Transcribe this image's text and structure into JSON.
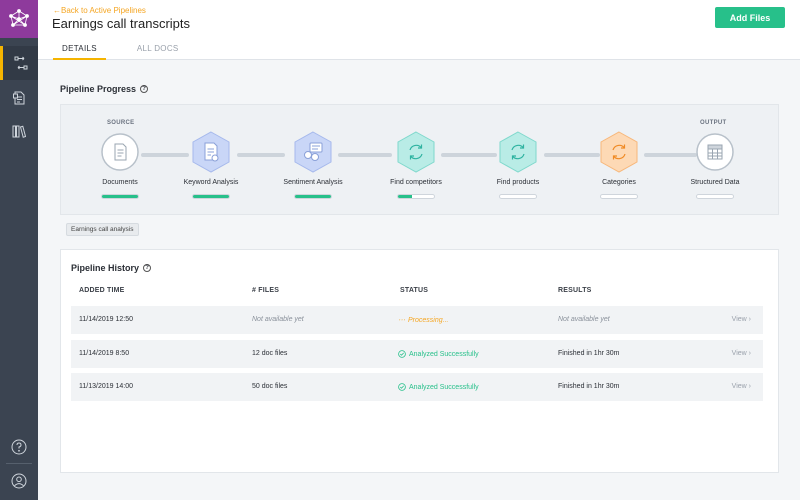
{
  "header": {
    "back_link": "←Back to Active Pipelines",
    "title": "Earnings call transcripts",
    "add_button": "Add Files"
  },
  "tabs": [
    {
      "label": "DETAILS",
      "active": true
    },
    {
      "label": "ALL DOCS",
      "active": false
    }
  ],
  "sidebar": {
    "logo_icon": "network-logo-icon",
    "items": [
      {
        "icon": "pipeline-icon",
        "active": true
      },
      {
        "icon": "document-icon",
        "active": false
      },
      {
        "icon": "library-icon",
        "active": false
      }
    ],
    "bottom": [
      {
        "icon": "help-icon"
      },
      {
        "icon": "user-icon"
      }
    ],
    "colors": {
      "bg": "#3b4451",
      "logo_bg": "#8e3a9c",
      "accent": "#f5b400"
    }
  },
  "progress": {
    "title": "Pipeline Progress",
    "source_label": "SOURCE",
    "output_label": "OUTPUT",
    "stages": [
      {
        "label": "Documents",
        "icon": "document-icon",
        "shape": "circle",
        "color": "#ffffff",
        "progress": 1.0
      },
      {
        "label": "Keyword Analysis",
        "icon": "edit-document-icon",
        "shape": "hexagon",
        "color": "#c9d6f7",
        "progress": 1.0
      },
      {
        "label": "Sentiment Analysis",
        "icon": "chat-bubbles-icon",
        "shape": "hexagon",
        "color": "#c9d6f7",
        "progress": 1.0
      },
      {
        "label": "Find competitors",
        "icon": "refresh-icon",
        "shape": "hexagon",
        "color": "#b9ece6",
        "progress": 0.4
      },
      {
        "label": "Find products",
        "icon": "refresh-icon",
        "shape": "hexagon",
        "color": "#b9ece6",
        "progress": 0.0
      },
      {
        "label": "Categories",
        "icon": "refresh-icon",
        "shape": "hexagon",
        "color": "#fdd9b5",
        "progress": 0.0
      },
      {
        "label": "Structured Data",
        "icon": "table-icon",
        "shape": "circle",
        "color": "#ffffff",
        "progress": 0.0
      }
    ],
    "tag": "Earnings call analysis"
  },
  "history": {
    "title": "Pipeline History",
    "columns": [
      "ADDED TIME",
      "# FILES",
      "STATUS",
      "RESULTS"
    ],
    "rows": [
      {
        "time": "11/14/2019 12:50",
        "files": "Not available yet",
        "status": "Processing...",
        "status_type": "processing",
        "results": "Not available yet",
        "view": "View"
      },
      {
        "time": "11/14/2019 8:50",
        "files": "12 doc files",
        "status": "Analyzed Successfully",
        "status_type": "success",
        "results": "Finished in 1hr 30m",
        "view": "View"
      },
      {
        "time": "11/13/2019 14:00",
        "files": "50 doc files",
        "status": "Analyzed Successfully",
        "status_type": "success",
        "results": "Finished in 1hr 30m",
        "view": "View"
      }
    ]
  }
}
